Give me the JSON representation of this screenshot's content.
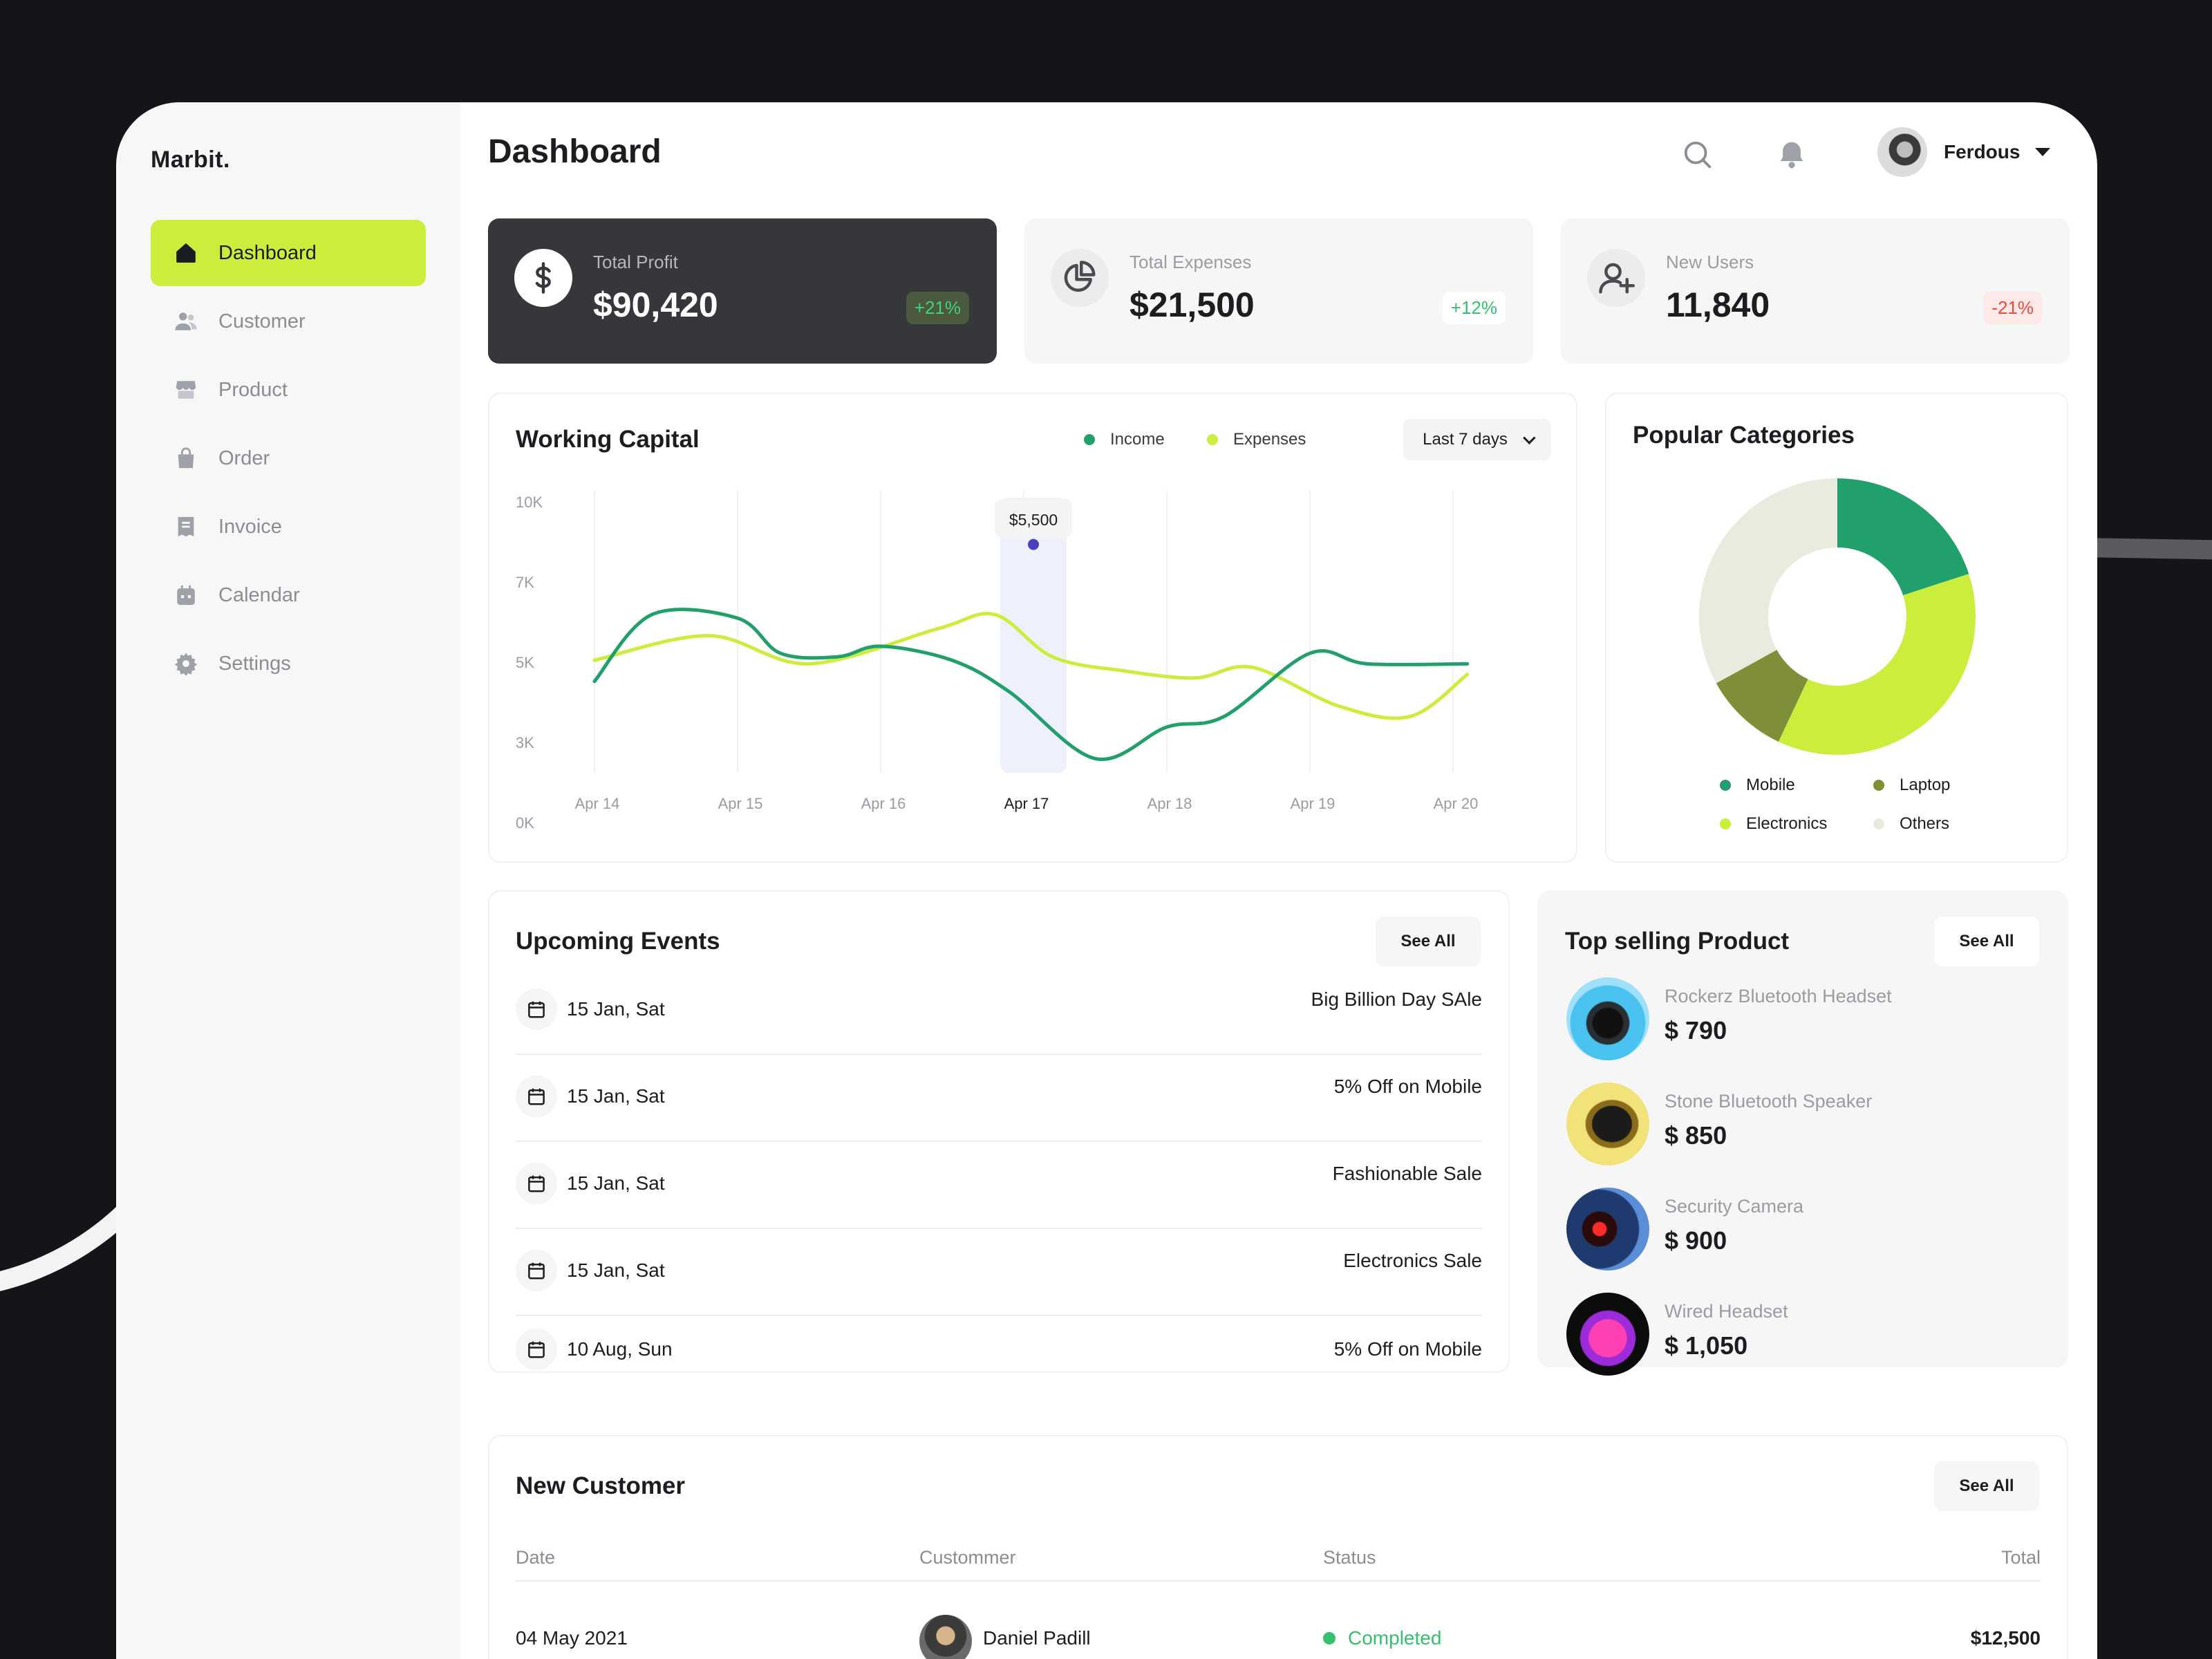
{
  "app": {
    "brand": "Marbit.",
    "page_title": "Dashboard"
  },
  "sidebar": {
    "items": [
      {
        "label": "Dashboard",
        "icon": "home-icon",
        "active": true
      },
      {
        "label": "Customer",
        "icon": "users-icon",
        "active": false
      },
      {
        "label": "Product",
        "icon": "store-icon",
        "active": false
      },
      {
        "label": "Order",
        "icon": "bag-icon",
        "active": false
      },
      {
        "label": "Invoice",
        "icon": "invoice-icon",
        "active": false
      },
      {
        "label": "Calendar",
        "icon": "calendar-icon",
        "active": false
      },
      {
        "label": "Settings",
        "icon": "gear-icon",
        "active": false
      }
    ]
  },
  "header": {
    "user_name": "Ferdous",
    "icons": [
      "search-icon",
      "bell-icon"
    ]
  },
  "stats": [
    {
      "label": "Total Profit",
      "value": "$90,420",
      "change": "+21%",
      "trend": "up",
      "icon": "dollar-icon"
    },
    {
      "label": "Total Expenses",
      "value": "$21,500",
      "change": "+12%",
      "trend": "up",
      "icon": "pie-icon"
    },
    {
      "label": "New Users",
      "value": "11,840",
      "change": "-21%",
      "trend": "down",
      "icon": "add-user-icon"
    }
  ],
  "working_capital": {
    "title": "Working Capital",
    "legend": {
      "income": "Income",
      "expenses": "Expenses"
    },
    "range": "Last 7 days",
    "tooltip": "$5,500",
    "highlight": "Apr 17"
  },
  "chart_data": [
    {
      "type": "line",
      "title": "Working Capital",
      "x": [
        "Apr 14",
        "Apr 15",
        "Apr 16",
        "Apr 17",
        "Apr 18",
        "Apr 19",
        "Apr 20"
      ],
      "yticks": [
        "10K",
        "7K",
        "5K",
        "3K",
        "0K"
      ],
      "ylim": [
        0,
        10000
      ],
      "series": [
        {
          "name": "Income",
          "color": "#22a06b",
          "points": [
            [
              0,
              4100
            ],
            [
              0.4,
              6000
            ],
            [
              1.0,
              5900
            ],
            [
              1.3,
              4900
            ],
            [
              1.7,
              4800
            ],
            [
              2.0,
              5100
            ],
            [
              2.5,
              4700
            ],
            [
              2.9,
              3800
            ],
            [
              3.5,
              1900
            ],
            [
              4.0,
              2800
            ],
            [
              4.4,
              3100
            ],
            [
              5.0,
              4900
            ],
            [
              5.4,
              4600
            ],
            [
              6.1,
              4600
            ]
          ]
        },
        {
          "name": "Expenses",
          "color": "#cbee3d",
          "points": [
            [
              0,
              4700
            ],
            [
              0.8,
              5400
            ],
            [
              1.5,
              4600
            ],
            [
              2.4,
              5600
            ],
            [
              2.8,
              6000
            ],
            [
              3.2,
              4800
            ],
            [
              3.7,
              4400
            ],
            [
              4.2,
              4200
            ],
            [
              4.6,
              4500
            ],
            [
              5.2,
              3400
            ],
            [
              5.7,
              3100
            ],
            [
              6.1,
              4300
            ]
          ]
        }
      ],
      "annotation": {
        "x": "Apr 17",
        "value": "$5,500"
      },
      "grid": "vertical",
      "legend": "top-right"
    },
    {
      "type": "pie",
      "title": "Popular Categories",
      "labels": [
        "Mobile",
        "Electronics",
        "Laptop",
        "Others"
      ],
      "values": [
        20,
        37,
        10,
        33
      ],
      "colors": [
        "#22a06b",
        "#cbee3d",
        "#7f8f37",
        "#e9ebde"
      ]
    }
  ],
  "popular_categories": {
    "title": "Popular Categories"
  },
  "events": {
    "title": "Upcoming Events",
    "see_all": "See All",
    "items": [
      {
        "date": "15 Jan, Sat",
        "name": "Big Billion Day SAle"
      },
      {
        "date": "15 Jan, Sat",
        "name": "5% Off on Mobile"
      },
      {
        "date": "15 Jan, Sat",
        "name": "Fashionable Sale"
      },
      {
        "date": "15 Jan, Sat",
        "name": "Electronics Sale"
      },
      {
        "date": "10 Aug, Sun",
        "name": "5% Off on Mobile"
      }
    ]
  },
  "top_products": {
    "title": "Top selling Product",
    "see_all": "See All",
    "items": [
      {
        "name": "Rockerz Bluetooth Headset",
        "price": "$ 790"
      },
      {
        "name": "Stone Bluetooth Speaker",
        "price": "$ 850"
      },
      {
        "name": "Security Camera",
        "price": "$ 900"
      },
      {
        "name": "Wired Headset",
        "price": "$ 1,050"
      }
    ]
  },
  "new_customer": {
    "title": "New Customer",
    "see_all": "See All",
    "columns": [
      "Date",
      "Custommer",
      "Status",
      "Total"
    ],
    "rows": [
      {
        "date": "04 May 2021",
        "customer": "Daniel Padill",
        "status": "Completed",
        "total": "$12,500"
      }
    ]
  }
}
